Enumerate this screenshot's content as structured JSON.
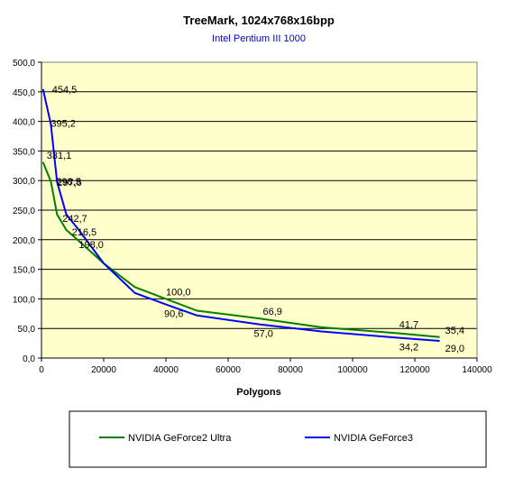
{
  "chart_data": {
    "type": "line",
    "title": "TreeMark, 1024x768x16bpp",
    "subtitle": "Intel Pentium III 1000",
    "xlabel": "Polygons",
    "ylabel": "",
    "xlim": [
      0,
      140000
    ],
    "ylim": [
      0,
      500
    ],
    "x_ticks": [
      "0",
      "20000",
      "40000",
      "60000",
      "80000",
      "100000",
      "120000",
      "140000"
    ],
    "y_ticks": [
      "0,0",
      "50,0",
      "100,0",
      "150,0",
      "200,0",
      "250,0",
      "300,0",
      "350,0",
      "400,0",
      "450,0",
      "500,0"
    ],
    "grid": true,
    "legend_position": "bottom",
    "plot_background": "#ffffcc",
    "series": [
      {
        "name": "NVIDIA GeForce2 Ultra",
        "color": "#008000",
        "points": [
          [
            500,
            331.1
          ],
          [
            3000,
            298.5
          ],
          [
            5000,
            242.7
          ],
          [
            8000,
            216.5
          ],
          [
            12000,
            198.0
          ],
          [
            20000,
            160.0
          ],
          [
            30000,
            120.0
          ],
          [
            40000,
            100.0
          ],
          [
            50000,
            80.0
          ],
          [
            70000,
            66.9
          ],
          [
            90000,
            52.0
          ],
          [
            115000,
            41.7
          ],
          [
            128000,
            35.4
          ]
        ],
        "labels": [
          "331,1",
          "298,5",
          "242,7",
          "216,5",
          "198,0",
          "",
          "",
          "100,0",
          "",
          "66,9",
          "",
          "41,7",
          "35,4"
        ]
      },
      {
        "name": "NVIDIA GeForce3",
        "color": "#0000ff",
        "points": [
          [
            500,
            454.5
          ],
          [
            3000,
            395.2
          ],
          [
            5000,
            297.6
          ],
          [
            8000,
            242.7
          ],
          [
            12000,
            216.5
          ],
          [
            20000,
            160.0
          ],
          [
            30000,
            110.0
          ],
          [
            40000,
            90.6
          ],
          [
            50000,
            72.0
          ],
          [
            70000,
            57.0
          ],
          [
            90000,
            45.0
          ],
          [
            115000,
            34.2
          ],
          [
            128000,
            29.0
          ]
        ],
        "labels": [
          "454,5",
          "395,2",
          "297,6",
          "",
          "",
          "",
          "",
          "90,6",
          "",
          "57,0",
          "",
          "34,2",
          "29,0"
        ]
      }
    ]
  }
}
